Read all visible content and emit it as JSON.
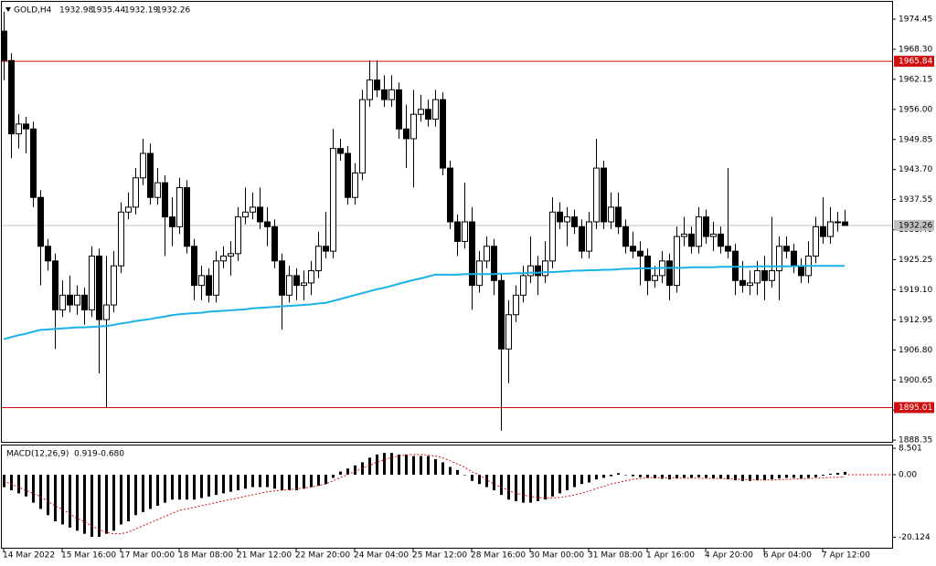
{
  "chart_data": {
    "type": "candlestick",
    "title": "GOLD,H4",
    "up_color": "#ffffff",
    "down_color": "#000000",
    "current_price_color": "#c0c0c0",
    "categories": [
      "14 Mar 2022",
      null,
      null,
      null,
      null,
      null,
      null,
      null,
      "15 Mar 16:00",
      null,
      null,
      null,
      null,
      null,
      null,
      null,
      "17 Mar 00:00",
      null,
      null,
      null,
      null,
      null,
      null,
      null,
      "18 Mar 08:00",
      null,
      null,
      null,
      null,
      null,
      null,
      null,
      "21 Mar 12:00",
      null,
      null,
      null,
      null,
      null,
      null,
      null,
      "22 Mar 20:00",
      null,
      null,
      null,
      null,
      null,
      null,
      null,
      "24 Mar 04:00",
      null,
      null,
      null,
      null,
      null,
      null,
      null,
      "25 Mar 12:00",
      null,
      null,
      null,
      null,
      null,
      null,
      null,
      "28 Mar 16:00",
      null,
      null,
      null,
      null,
      null,
      null,
      null,
      "30 Mar 00:00",
      null,
      null,
      null,
      null,
      null,
      null,
      null,
      "31 Mar 08:00",
      null,
      null,
      null,
      null,
      null,
      null,
      null,
      "1 Apr 16:00",
      null,
      null,
      null,
      null,
      null,
      null,
      null,
      "4 Apr 20:00",
      null,
      null,
      null,
      null,
      null,
      null,
      null,
      "6 Apr 04:00",
      null,
      null,
      null,
      null,
      null,
      null,
      null,
      "7 Apr 12:00",
      null,
      null,
      null
    ],
    "candles": [
      [
        1972,
        1976,
        1962,
        1966
      ],
      [
        1966,
        1967.5,
        1946,
        1951
      ],
      [
        1951,
        1955,
        1948,
        1953
      ],
      [
        1953,
        1954.5,
        1947,
        1952
      ],
      [
        1952,
        1953.5,
        1936,
        1938
      ],
      [
        1938,
        1939.5,
        1920,
        1928
      ],
      [
        1928,
        1929.5,
        1923,
        1925
      ],
      [
        1925,
        1926.5,
        1907,
        1915
      ],
      [
        1915,
        1921,
        1913.5,
        1918
      ],
      [
        1918,
        1922,
        1914.5,
        1916
      ],
      [
        1916,
        1920,
        1914,
        1918
      ],
      [
        1918,
        1919.5,
        1912,
        1915
      ],
      [
        1915,
        1928,
        1913.5,
        1926
      ],
      [
        1926,
        1927.5,
        1902,
        1913
      ],
      [
        1913,
        1926,
        1895.01,
        1916
      ],
      [
        1916,
        1927,
        1914.5,
        1924
      ],
      [
        1924,
        1937,
        1922.5,
        1935
      ],
      [
        1935,
        1939,
        1933.5,
        1936
      ],
      [
        1936,
        1944,
        1934.5,
        1942
      ],
      [
        1942,
        1950,
        1940.5,
        1947
      ],
      [
        1947,
        1949,
        1936.5,
        1938
      ],
      [
        1938,
        1944,
        1936.5,
        1941
      ],
      [
        1941,
        1942.5,
        1926,
        1934
      ],
      [
        1934,
        1938,
        1928,
        1932
      ],
      [
        1932,
        1942,
        1930.5,
        1940
      ],
      [
        1940,
        1941.5,
        1926.5,
        1928
      ],
      [
        1928,
        1929.5,
        1917,
        1920
      ],
      [
        1920,
        1924,
        1917,
        1922
      ],
      [
        1922,
        1923.5,
        1916.5,
        1918
      ],
      [
        1918,
        1927,
        1916.5,
        1925
      ],
      [
        1925,
        1928,
        1923.5,
        1926
      ],
      [
        1926,
        1929,
        1922,
        1926.5
      ],
      [
        1926.5,
        1936,
        1925,
        1934
      ],
      [
        1934,
        1940,
        1932.5,
        1935
      ],
      [
        1935,
        1939,
        1933.5,
        1936
      ],
      [
        1936,
        1940,
        1931.5,
        1933
      ],
      [
        1933,
        1936,
        1928,
        1932
      ],
      [
        1932,
        1933.5,
        1923.5,
        1925
      ],
      [
        1925,
        1926.5,
        1911,
        1918
      ],
      [
        1918,
        1924,
        1916.5,
        1922
      ],
      [
        1922,
        1923.5,
        1917,
        1920
      ],
      [
        1920,
        1923,
        1917,
        1920.5
      ],
      [
        1920.5,
        1925,
        1918,
        1923
      ],
      [
        1923,
        1931,
        1921.5,
        1928
      ],
      [
        1928,
        1935,
        1925.5,
        1927
      ],
      [
        1927,
        1952,
        1925.5,
        1948
      ],
      [
        1948,
        1950,
        1945.5,
        1947
      ],
      [
        1947,
        1948.5,
        1936.5,
        1938
      ],
      [
        1938,
        1945,
        1936.5,
        1943
      ],
      [
        1943,
        1960,
        1941.5,
        1958
      ],
      [
        1958,
        1966,
        1956.5,
        1962
      ],
      [
        1962,
        1966,
        1958.5,
        1960
      ],
      [
        1960,
        1963,
        1956.5,
        1958
      ],
      [
        1958,
        1963,
        1956.5,
        1960
      ],
      [
        1960,
        1961.5,
        1950,
        1952
      ],
      [
        1952,
        1957,
        1944,
        1950
      ],
      [
        1950,
        1960,
        1940,
        1955
      ],
      [
        1955,
        1959,
        1953.5,
        1956
      ],
      [
        1956,
        1958,
        1952.5,
        1954
      ],
      [
        1954,
        1960,
        1952.5,
        1958
      ],
      [
        1958,
        1959.5,
        1942.5,
        1944
      ],
      [
        1944,
        1945.5,
        1931.5,
        1933
      ],
      [
        1933,
        1934.5,
        1926,
        1929
      ],
      [
        1929,
        1941,
        1927.5,
        1933
      ],
      [
        1933,
        1936,
        1915,
        1920
      ],
      [
        1920,
        1927,
        1918.5,
        1925
      ],
      [
        1925,
        1930,
        1923.5,
        1928
      ],
      [
        1928,
        1929.5,
        1918,
        1921
      ],
      [
        1921,
        1922.5,
        1890.3,
        1907
      ],
      [
        1907,
        1917,
        1900,
        1914
      ],
      [
        1914,
        1920,
        1912.5,
        1918
      ],
      [
        1918,
        1924,
        1916.5,
        1922
      ],
      [
        1922,
        1930,
        1920.5,
        1924
      ],
      [
        1924,
        1926,
        1918,
        1922
      ],
      [
        1922,
        1929,
        1920.5,
        1925
      ],
      [
        1925,
        1938,
        1923.5,
        1935
      ],
      [
        1935,
        1937,
        1931.5,
        1933
      ],
      [
        1933,
        1936,
        1928,
        1934
      ],
      [
        1934,
        1935.5,
        1930.5,
        1932
      ],
      [
        1932,
        1933.5,
        1925.5,
        1927
      ],
      [
        1927,
        1935,
        1925.5,
        1933
      ],
      [
        1933,
        1950,
        1931.5,
        1944
      ],
      [
        1944,
        1945.5,
        1931.5,
        1933
      ],
      [
        1933,
        1939,
        1931.5,
        1936
      ],
      [
        1936,
        1939,
        1930.5,
        1932
      ],
      [
        1932,
        1933.5,
        1926.5,
        1928
      ],
      [
        1928,
        1931,
        1925.5,
        1927
      ],
      [
        1927,
        1929,
        1920,
        1926
      ],
      [
        1926,
        1927.5,
        1918,
        1921
      ],
      [
        1921,
        1924,
        1919.5,
        1922
      ],
      [
        1922,
        1927,
        1920.5,
        1925
      ],
      [
        1925,
        1926.5,
        1917,
        1920
      ],
      [
        1920,
        1932,
        1918.5,
        1930
      ],
      [
        1930,
        1934,
        1928,
        1930.5
      ],
      [
        1930.5,
        1932,
        1926.5,
        1928
      ],
      [
        1928,
        1936,
        1926.5,
        1934
      ],
      [
        1934,
        1935.5,
        1928.5,
        1930
      ],
      [
        1930,
        1933,
        1927,
        1930.5
      ],
      [
        1930.5,
        1932,
        1926.5,
        1928
      ],
      [
        1928,
        1944,
        1925.5,
        1927
      ],
      [
        1927,
        1928.5,
        1918,
        1921
      ],
      [
        1921,
        1925,
        1918.5,
        1920
      ],
      [
        1920,
        1923,
        1918,
        1920.5
      ],
      [
        1920.5,
        1925,
        1918,
        1923
      ],
      [
        1923,
        1926,
        1917,
        1921
      ],
      [
        1921,
        1934,
        1919.5,
        1923
      ],
      [
        1923,
        1930,
        1917,
        1928
      ],
      [
        1928,
        1930,
        1925.5,
        1927
      ],
      [
        1927,
        1928.5,
        1922.5,
        1924
      ],
      [
        1924,
        1925.5,
        1920.5,
        1922
      ],
      [
        1922,
        1929,
        1920.5,
        1926
      ],
      [
        1926,
        1934,
        1924.5,
        1932
      ],
      [
        1932,
        1938,
        1928.5,
        1930
      ],
      [
        1930,
        1936,
        1928.5,
        1933
      ],
      [
        1933,
        1935,
        1931,
        1932.98
      ],
      [
        1932.98,
        1935.44,
        1932.19,
        1932.26
      ]
    ],
    "ylim": [
      1888,
      1978
    ],
    "yticks": [
      1974.45,
      {
        "value": 1968.3,
        "label": "1968.30"
      },
      1962.15,
      {
        "value": 1956,
        "label": "1956.00"
      },
      1949.85,
      {
        "value": 1943.7,
        "label": "1943.70"
      },
      1937.55,
      {
        "value": 1931.4,
        "label": "1931.40"
      },
      1925.25,
      {
        "value": 1919.1,
        "label": "1919.10"
      },
      1912.95,
      {
        "value": 1906.8,
        "label": "1906.80"
      },
      1900.65,
      {
        "value": 1894.5,
        "label": "1894.50"
      },
      1888.35
    ],
    "levels": [
      {
        "value": 1965.84,
        "color": "#d01010"
      },
      {
        "value": 1895.01,
        "color": "#d01010"
      }
    ],
    "ma": {
      "color": "#1ab2e8",
      "values": [
        1909.0,
        1909.4,
        1909.8,
        1910.1,
        1910.5,
        1910.9,
        1911.0,
        1911.1,
        1911.2,
        1911.3,
        1911.4,
        1911.4,
        1911.5,
        1911.6,
        1911.7,
        1911.9,
        1912.2,
        1912.4,
        1912.7,
        1912.9,
        1913.1,
        1913.4,
        1913.6,
        1913.9,
        1914.1,
        1914.2,
        1914.3,
        1914.4,
        1914.6,
        1914.7,
        1914.8,
        1914.9,
        1915.0,
        1915.1,
        1915.3,
        1915.4,
        1915.5,
        1915.6,
        1915.7,
        1915.8,
        1915.9,
        1916.0,
        1916.1,
        1916.3,
        1916.4,
        1916.8,
        1917.2,
        1917.6,
        1918.0,
        1918.4,
        1918.8,
        1919.2,
        1919.5,
        1919.9,
        1920.3,
        1920.7,
        1921.1,
        1921.4,
        1921.8,
        1922.2,
        1922.2,
        1922.2,
        1922.2,
        1922.3,
        1922.3,
        1922.3,
        1922.3,
        1922.3,
        1922.4,
        1922.4,
        1922.5,
        1922.5,
        1922.6,
        1922.6,
        1922.7,
        1922.7,
        1922.8,
        1922.9,
        1923.0,
        1923.0,
        1923.1,
        1923.1,
        1923.2,
        1923.2,
        1923.3,
        1923.4,
        1923.4,
        1923.5,
        1923.5,
        1923.5,
        1923.6,
        1923.6,
        1923.6,
        1923.6,
        1923.7,
        1923.7,
        1923.7,
        1923.7,
        1923.8,
        1923.8,
        1923.8,
        1923.8,
        1923.8,
        1923.9,
        1923.9,
        1923.9,
        1923.9,
        1923.9,
        1923.9,
        1924.0,
        1924.0,
        1924.0,
        1924.0,
        1924.0,
        1924.0,
        1924.0
      ]
    },
    "macd": {
      "title": "MACD(12,26,9)",
      "hist_color": "#000000",
      "signal_color": "#d01010",
      "ylim": [
        -23.5,
        9.4
      ],
      "yticks": [
        8.501,
        {
          "value": 0,
          "label": "0.00"
        },
        -20.124
      ],
      "histogram": [
        -4,
        -5,
        -6,
        -7,
        -9,
        -11,
        -13,
        -15,
        -16,
        -17,
        -18,
        -19,
        -20,
        -20,
        -19,
        -18,
        -16,
        -15,
        -13,
        -12,
        -11,
        -10,
        -9,
        -8,
        -8,
        -8,
        -8,
        -7.5,
        -7,
        -6.5,
        -6,
        -5.5,
        -5,
        -4.5,
        -4,
        -4,
        -4,
        -4.5,
        -5,
        -5,
        -5,
        -4.5,
        -4,
        -3.5,
        -3,
        -1,
        1,
        2,
        3,
        4,
        5.5,
        6.5,
        7,
        7,
        6.5,
        6.5,
        6,
        6,
        6,
        5,
        4,
        2.5,
        1.5,
        0,
        -2,
        -3,
        -4,
        -5,
        -6.5,
        -8,
        -8.5,
        -9,
        -9,
        -8.5,
        -8,
        -7,
        -6,
        -5,
        -4,
        -3,
        -2.5,
        -1.5,
        -1,
        -0.5,
        0.5,
        0,
        -0.5,
        -0.8,
        -1,
        -1.2,
        -1.3,
        -1.5,
        -1.2,
        -1,
        -1,
        -0.8,
        -1,
        -1.2,
        -1.3,
        -1.5,
        -1.8,
        -2,
        -2,
        -1.8,
        -1.8,
        -1.5,
        -1.2,
        -1,
        -1,
        -1.2,
        -1,
        -0.8,
        -0.3,
        0.3,
        0.6,
        0.919
      ],
      "signal": [
        -2,
        -3,
        -4,
        -5,
        -6,
        -7,
        -8.5,
        -10,
        -11,
        -12.5,
        -14,
        -15,
        -16.5,
        -17.5,
        -18.5,
        -19,
        -19,
        -18.5,
        -17.5,
        -16.5,
        -15.5,
        -14.5,
        -13.5,
        -12.5,
        -11.5,
        -11,
        -10.5,
        -10,
        -9.5,
        -9,
        -8.5,
        -8,
        -7.5,
        -7,
        -6.5,
        -6,
        -5.5,
        -5.2,
        -5,
        -4.8,
        -4.5,
        -4.3,
        -4,
        -3.5,
        -3,
        -2,
        -1,
        0,
        1,
        2,
        3,
        4,
        4.8,
        5.5,
        6,
        6.3,
        6.5,
        6.5,
        6.3,
        6,
        5.5,
        4.5,
        3.5,
        2.5,
        1,
        0,
        -1.5,
        -3,
        -4,
        -5,
        -6,
        -6.5,
        -7,
        -7.3,
        -7.5,
        -7.5,
        -7.3,
        -7,
        -6.5,
        -6,
        -5.3,
        -4.5,
        -3.8,
        -3,
        -2.5,
        -2,
        -1.5,
        -1.2,
        -1,
        -1,
        -1,
        -1,
        -1.1,
        -1.1,
        -1.1,
        -1.1,
        -1.2,
        -1.2,
        -1.2,
        -1.3,
        -1.4,
        -1.5,
        -1.6,
        -1.7,
        -1.7,
        -1.7,
        -1.6,
        -1.5,
        -1.4,
        -1.3,
        -1.2,
        -1.1,
        -1,
        -0.9,
        -0.8,
        -0.68
      ],
      "signal_label": "-0.680"
    }
  }
}
